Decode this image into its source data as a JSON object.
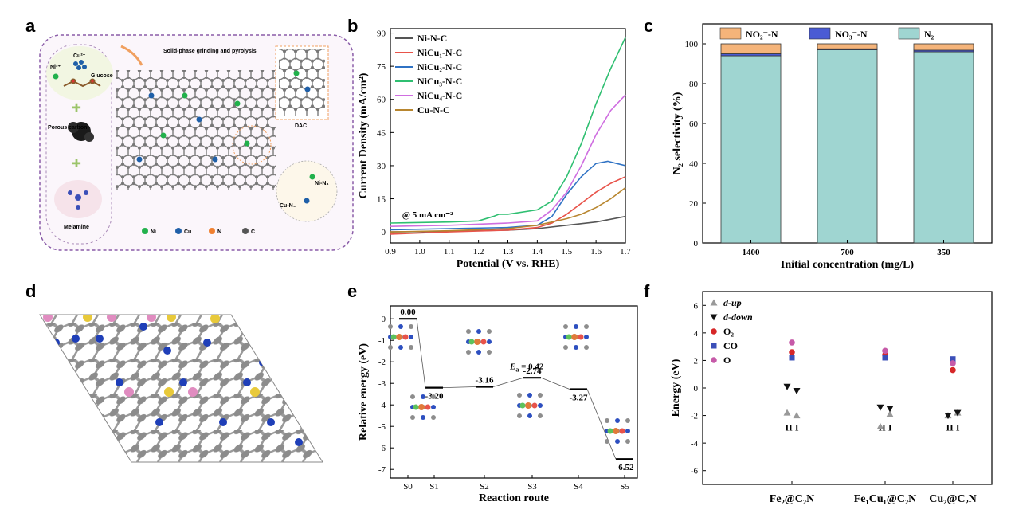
{
  "panels": {
    "a": "a",
    "b": "b",
    "c": "c",
    "d": "d",
    "e": "e",
    "f": "f"
  },
  "schematic": {
    "ni_ion": "Ni²⁺",
    "cu_ion": "Cu²⁺",
    "glucose": "Glucose",
    "porous_carbon": "Porous carbon",
    "melamine": "Melamine",
    "process": "Solid-phase grinding and pyrolysis",
    "dac": "DAC",
    "ni_n4": "Ni-N₄",
    "cu_n4": "Cu-N₄",
    "legend": [
      {
        "label": "Ni",
        "color": "#22b14c"
      },
      {
        "label": "Cu",
        "color": "#1f5fa8"
      },
      {
        "label": "N",
        "color": "#f08030"
      },
      {
        "label": "C",
        "color": "#555555"
      }
    ]
  },
  "chart_data": [
    {
      "type": "line",
      "xlabel": "Potential (V vs. RHE)",
      "ylabel": "Current Density (mA/cm²)",
      "xlim": [
        0.9,
        1.7
      ],
      "ylim": [
        -5,
        92
      ],
      "xticks": [
        0.9,
        1.0,
        1.1,
        1.2,
        1.3,
        1.4,
        1.5,
        1.6,
        1.7
      ],
      "yticks": [
        0,
        15,
        30,
        45,
        60,
        75,
        90
      ],
      "annotation": "@ 5 mA cm⁻²",
      "legend_position": "top-left",
      "series": [
        {
          "name": "Ni-N-C",
          "color": "#555555",
          "x": [
            0.9,
            1.1,
            1.3,
            1.4,
            1.5,
            1.6,
            1.7
          ],
          "y": [
            0,
            0.3,
            0.8,
            1.5,
            3,
            4.5,
            7
          ]
        },
        {
          "name": "NiCu₁-N-C",
          "color": "#e8534a",
          "x": [
            0.9,
            1.1,
            1.3,
            1.4,
            1.45,
            1.5,
            1.55,
            1.6,
            1.65,
            1.7
          ],
          "y": [
            -1,
            0,
            0.8,
            2,
            4,
            8,
            13,
            18,
            22,
            25
          ]
        },
        {
          "name": "NiCu₂-N-C",
          "color": "#2f72c4",
          "x": [
            0.9,
            1.1,
            1.3,
            1.4,
            1.45,
            1.5,
            1.55,
            1.6,
            1.64,
            1.67,
            1.7
          ],
          "y": [
            1,
            1.5,
            2,
            3,
            7,
            17,
            25,
            31,
            32,
            31,
            30
          ]
        },
        {
          "name": "NiCu₃-N-C",
          "color": "#2fbf71",
          "x": [
            0.9,
            1.1,
            1.2,
            1.25,
            1.27,
            1.3,
            1.4,
            1.45,
            1.5,
            1.55,
            1.6,
            1.65,
            1.7
          ],
          "y": [
            4,
            4.5,
            5,
            7,
            8,
            8,
            10,
            14,
            25,
            40,
            58,
            74,
            88
          ]
        },
        {
          "name": "NiCu₄-N-C",
          "color": "#cf6ee0",
          "x": [
            0.9,
            1.1,
            1.3,
            1.4,
            1.45,
            1.5,
            1.55,
            1.6,
            1.65,
            1.7
          ],
          "y": [
            2.5,
            3,
            4,
            5,
            10,
            18,
            30,
            44,
            55,
            62
          ]
        },
        {
          "name": "Cu-N-C",
          "color": "#b8862f",
          "x": [
            0.9,
            1.1,
            1.3,
            1.4,
            1.5,
            1.55,
            1.6,
            1.65,
            1.7
          ],
          "y": [
            0,
            0.5,
            1.5,
            3,
            6,
            8,
            11,
            15,
            20
          ]
        }
      ]
    },
    {
      "type": "bar",
      "stacked": true,
      "xlabel": "Initial concentration (mg/L)",
      "ylabel": "N₂ selectivity (%)",
      "ylim": [
        0,
        110
      ],
      "yticks": [
        0,
        20,
        40,
        60,
        80,
        100
      ],
      "categories": [
        "1400",
        "700",
        "350"
      ],
      "legend_position": "top",
      "series": [
        {
          "name": "N₂",
          "color": "#9fd5d1",
          "values": [
            94,
            97,
            96
          ]
        },
        {
          "name": "NO₃⁻-N",
          "color": "#4a5bd4",
          "values": [
            1,
            0.5,
            0.8
          ]
        },
        {
          "name": "NO₂⁻-N",
          "color": "#f5b47a",
          "values": [
            5,
            2.5,
            3.2
          ]
        }
      ]
    },
    {
      "type": "line",
      "xlabel": "Reaction route",
      "ylabel": "Relative energy (eV)",
      "ylim": [
        -7.4,
        0.6
      ],
      "yticks": [
        0,
        -1,
        -2,
        -3,
        -4,
        -5,
        -6,
        -7
      ],
      "categories": [
        "S0",
        "S1",
        "S2",
        "S3",
        "S4",
        "S5"
      ],
      "values": [
        0.0,
        -3.2,
        -3.16,
        -2.74,
        -3.27,
        -6.52
      ],
      "value_labels": [
        "0.00",
        "-3.20",
        "-3.16",
        "-2.74",
        "-3.27",
        "-6.52"
      ],
      "barrier_label": "E",
      "barrier_sub": "a",
      "barrier_value": " = 0.42"
    },
    {
      "type": "scatter",
      "ylabel": "Energy (eV)",
      "ylim": [
        -7,
        7
      ],
      "yticks": [
        6,
        4,
        2,
        0,
        -2,
        -4,
        -6
      ],
      "categories": [
        "Fe₂@C₂N",
        "Fe₁Cu₁@C₂N",
        "Cu₂@C₂N"
      ],
      "site_labels": "II  I",
      "legend_position": "top-left",
      "series": [
        {
          "name": "d-up",
          "marker": "triangle-up",
          "color": "#999999",
          "points": [
            [
              0,
              -1.8
            ],
            [
              0.2,
              -2.0
            ],
            [
              1,
              -2.8
            ],
            [
              1.2,
              -1.9
            ],
            [
              2,
              -2.0
            ],
            [
              2.2,
              -1.8
            ]
          ]
        },
        {
          "name": "d-down",
          "marker": "triangle-down",
          "color": "#111111",
          "points": [
            [
              0,
              0.1
            ],
            [
              0.2,
              -0.2
            ],
            [
              1,
              -1.4
            ],
            [
              1.2,
              -1.5
            ],
            [
              2,
              -2.0
            ],
            [
              2.2,
              -1.8
            ]
          ]
        },
        {
          "name": "O₂",
          "marker": "circle",
          "color": "#d62728",
          "points": [
            [
              0,
              2.6
            ],
            [
              1,
              2.4
            ],
            [
              2,
              1.3
            ]
          ]
        },
        {
          "name": "CO",
          "marker": "square",
          "color": "#3b4fb8",
          "points": [
            [
              0,
              2.2
            ],
            [
              1,
              2.2
            ],
            [
              2,
              2.1
            ]
          ]
        },
        {
          "name": "O",
          "marker": "circle",
          "color": "#c65aa8",
          "points": [
            [
              0,
              3.3
            ],
            [
              1,
              2.7
            ],
            [
              2,
              1.8
            ]
          ]
        }
      ]
    }
  ]
}
